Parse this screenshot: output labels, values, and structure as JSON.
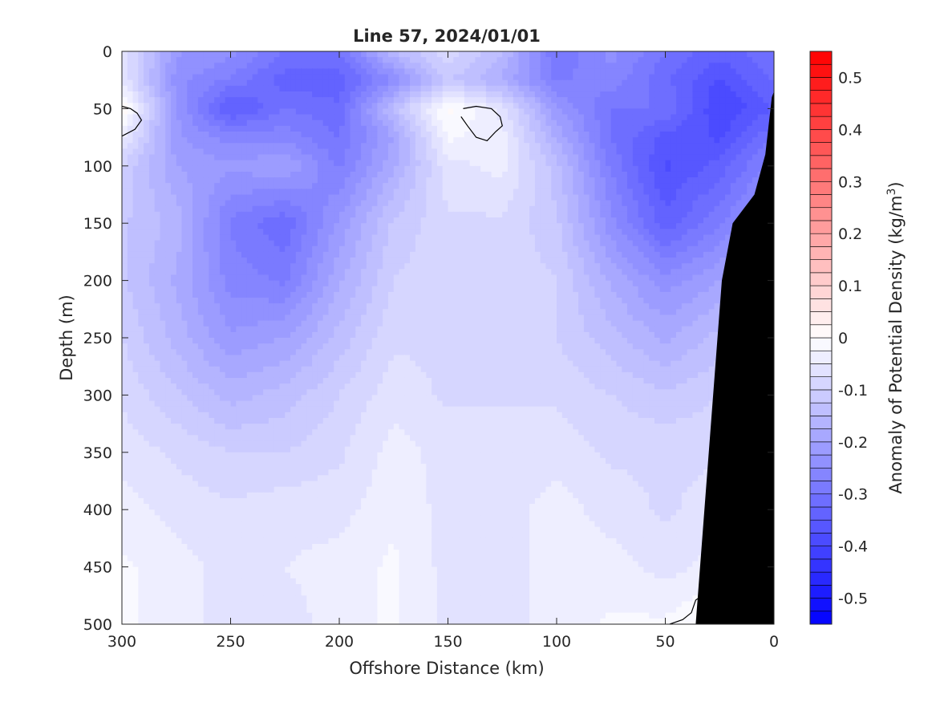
{
  "chart_data": {
    "type": "filled-contour",
    "title": "Line 57, 2024/01/01",
    "xlabel": "Offshore Distance (km)",
    "ylabel": "Depth (m)",
    "colorbar_label": "Anomaly of Potential Density (kg/m",
    "colorbar_label_sup": "3",
    "colorbar_label_end": ")",
    "x_reversed": true,
    "y_reversed": true,
    "xlim": [
      300,
      0
    ],
    "ylim": [
      0,
      500
    ],
    "clim": [
      -0.55,
      0.55
    ],
    "contour_step": 0.025,
    "x_ticks": [
      "300",
      "250",
      "200",
      "150",
      "100",
      "50",
      "0"
    ],
    "y_ticks": [
      "0",
      "50",
      "100",
      "150",
      "200",
      "250",
      "300",
      "350",
      "400",
      "450",
      "500"
    ],
    "colorbar_ticks": [
      "0.5",
      "0.4",
      "0.3",
      "0.2",
      "0.1",
      "0",
      "-0.1",
      "-0.2",
      "-0.3",
      "-0.4",
      "-0.5"
    ],
    "colormap": {
      "negative": "#0000ff",
      "zero": "#ffffff",
      "positive": "#ff0000"
    },
    "land_color": "#000000",
    "x_grid_km": [
      300,
      275,
      250,
      225,
      200,
      175,
      150,
      125,
      100,
      75,
      50,
      25,
      0
    ],
    "depth_grid_m": [
      0,
      25,
      50,
      75,
      100,
      150,
      200,
      250,
      300,
      350,
      400,
      450,
      500
    ],
    "anomaly": [
      [
        -0.05,
        -0.22,
        -0.24,
        -0.3,
        -0.3,
        -0.15,
        -0.08,
        -0.15,
        -0.3,
        -0.24,
        -0.3,
        -0.34,
        -0.3
      ],
      [
        -0.05,
        -0.24,
        -0.28,
        -0.34,
        -0.34,
        -0.25,
        -0.12,
        -0.18,
        -0.28,
        -0.26,
        -0.32,
        -0.38,
        -0.32
      ],
      [
        0.02,
        -0.22,
        -0.36,
        -0.3,
        -0.32,
        -0.14,
        0.01,
        -0.06,
        -0.22,
        -0.3,
        -0.3,
        -0.4,
        -0.35
      ],
      [
        -0.04,
        -0.22,
        -0.26,
        -0.26,
        -0.3,
        -0.2,
        -0.02,
        -0.04,
        -0.18,
        -0.3,
        -0.36,
        -0.38,
        -0.3
      ],
      [
        -0.1,
        -0.2,
        -0.22,
        -0.2,
        -0.28,
        -0.18,
        -0.06,
        -0.04,
        -0.14,
        -0.28,
        -0.38,
        -0.34,
        -0.26
      ],
      [
        -0.12,
        -0.16,
        -0.28,
        -0.32,
        -0.22,
        -0.12,
        -0.08,
        -0.08,
        -0.12,
        -0.24,
        -0.34,
        -0.28,
        -0.2
      ],
      [
        -0.12,
        -0.18,
        -0.26,
        -0.28,
        -0.18,
        -0.1,
        -0.08,
        -0.08,
        -0.1,
        -0.18,
        -0.24,
        -0.2,
        -0.14
      ],
      [
        -0.1,
        -0.16,
        -0.22,
        -0.2,
        -0.14,
        -0.08,
        -0.08,
        -0.08,
        -0.1,
        -0.14,
        -0.18,
        -0.14,
        -0.12
      ],
      [
        -0.08,
        -0.12,
        -0.16,
        -0.14,
        -0.1,
        -0.06,
        -0.08,
        -0.08,
        -0.08,
        -0.1,
        -0.12,
        -0.1,
        -0.1
      ],
      [
        -0.06,
        -0.08,
        -0.1,
        -0.1,
        -0.08,
        -0.04,
        -0.06,
        -0.06,
        -0.06,
        -0.08,
        -0.08,
        -0.08,
        -0.08
      ],
      [
        -0.04,
        -0.06,
        -0.07,
        -0.06,
        -0.06,
        -0.03,
        -0.06,
        -0.06,
        -0.04,
        -0.06,
        -0.08,
        -0.06,
        -0.06
      ],
      [
        -0.02,
        -0.04,
        -0.06,
        -0.05,
        -0.04,
        -0.02,
        -0.06,
        -0.06,
        -0.04,
        -0.04,
        -0.06,
        -0.04,
        -0.04
      ],
      [
        -0.02,
        -0.04,
        -0.06,
        -0.06,
        -0.04,
        -0.02,
        -0.06,
        -0.06,
        -0.04,
        -0.02,
        -0.02,
        0.01,
        -0.02
      ]
    ],
    "bathymetry": [
      [
        36,
        500
      ],
      [
        30,
        350
      ],
      [
        24,
        200
      ],
      [
        19,
        150
      ],
      [
        9,
        125
      ],
      [
        4,
        90
      ],
      [
        1,
        40
      ],
      [
        0,
        35
      ]
    ],
    "zero_contours": [
      [
        [
          300,
          48
        ],
        [
          296,
          50
        ],
        [
          293,
          54
        ],
        [
          291,
          60
        ],
        [
          294,
          68
        ],
        [
          300,
          74
        ]
      ],
      [
        [
          143,
          50
        ],
        [
          137,
          48
        ],
        [
          130,
          50
        ],
        [
          126,
          57
        ],
        [
          125,
          65
        ],
        [
          128,
          70
        ],
        [
          132,
          78
        ],
        [
          137,
          75
        ],
        [
          141,
          65
        ],
        [
          144,
          57
        ]
      ],
      [
        [
          48,
          500
        ],
        [
          42,
          496
        ],
        [
          38,
          490
        ],
        [
          36,
          479
        ],
        [
          33,
          475
        ]
      ],
      [
        [
          33,
          442
        ],
        [
          31,
          438
        ],
        [
          30,
          434
        ]
      ]
    ]
  }
}
